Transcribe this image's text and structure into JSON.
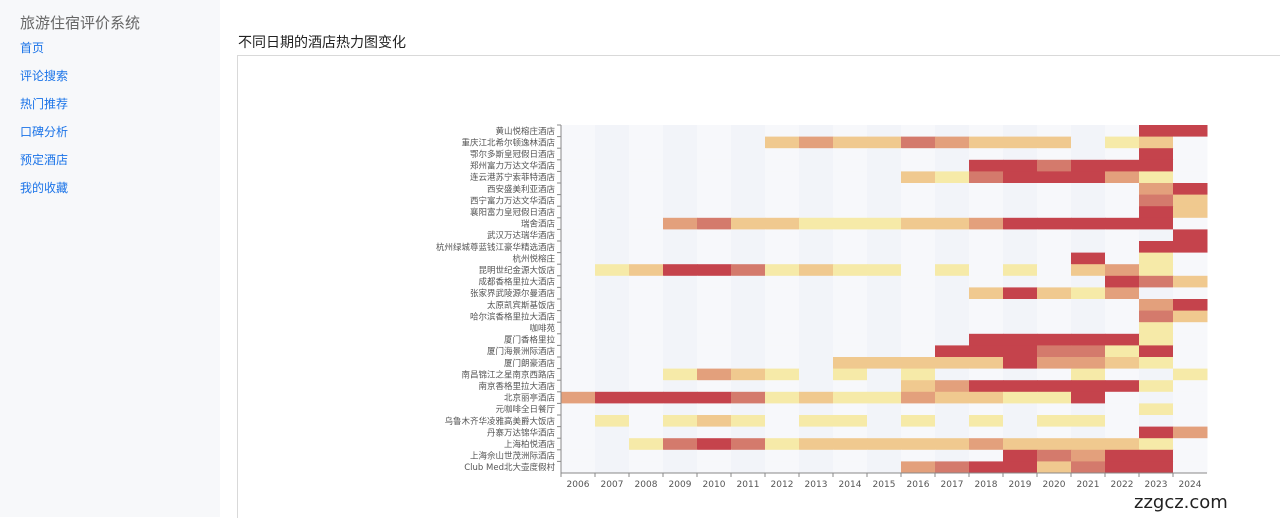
{
  "app": {
    "title": "旅游住宿评价系统"
  },
  "nav": [
    {
      "label": "首页"
    },
    {
      "label": "评论搜索"
    },
    {
      "label": "热门推荐"
    },
    {
      "label": "口碑分析"
    },
    {
      "label": "预定酒店"
    },
    {
      "label": "我的收藏"
    }
  ],
  "main": {
    "title": "不同日期的酒店热力图变化"
  },
  "watermark": "zzgcz.com",
  "chart_data": {
    "type": "heatmap",
    "title": "",
    "x_categories": [
      "2006",
      "2007",
      "2008",
      "2009",
      "2010",
      "2011",
      "2012",
      "2013",
      "2014",
      "2015",
      "2016",
      "2017",
      "2018",
      "2019",
      "2020",
      "2021",
      "2022",
      "2023",
      "2024"
    ],
    "y_categories": [
      "黄山悦榕庄酒店",
      "重庆江北希尔顿逸林酒店",
      "鄂尔多斯皇冠假日酒店",
      "郑州富力万达文华酒店",
      "连云港苏宁索菲特酒店",
      "西安盛美利亚酒店",
      "西宁富力万达文华酒店",
      "襄阳富力皇冠假日酒店",
      "瑞舍酒店",
      "武汉万达瑞华酒店",
      "杭州绿城尊蓝钱江豪华精选酒店",
      "杭州悦榕庄",
      "昆明世纪金源大饭店",
      "成都香格里拉大酒店",
      "张家界武陵源尔曼酒店",
      "太原凯宾斯基饭店",
      "哈尔滨香格里拉大酒店",
      "咖啡苑",
      "厦门香格里拉",
      "厦门海景洲际酒店",
      "厦门朗豪酒店",
      "南昌锦江之星南京西路店",
      "南京香格里拉大酒店",
      "北京丽亭酒店",
      "元咖啡全日餐厅",
      "乌鲁木齐华凌雅高美爵大饭店",
      "丹寨万达锦华酒店",
      "上海柏悦酒店",
      "上海佘山世茂洲际酒店",
      "Club Med北大壶度假村"
    ],
    "value_range": [
      0,
      5
    ],
    "rows": [
      [
        0,
        0,
        0,
        0,
        0,
        0,
        0,
        0,
        0,
        0,
        0,
        0,
        0,
        0,
        0,
        0,
        0,
        5,
        5
      ],
      [
        0,
        0,
        0,
        0,
        0,
        0,
        2,
        3,
        2,
        2,
        4,
        3,
        2,
        2,
        2,
        0,
        1,
        2,
        0
      ],
      [
        0,
        0,
        0,
        0,
        0,
        0,
        0,
        0,
        0,
        0,
        0,
        0,
        0,
        0,
        0,
        0,
        0,
        5,
        0
      ],
      [
        0,
        0,
        0,
        0,
        0,
        0,
        0,
        0,
        0,
        0,
        0,
        0,
        5,
        5,
        4,
        5,
        5,
        5,
        0
      ],
      [
        0,
        0,
        0,
        0,
        0,
        0,
        0,
        0,
        0,
        0,
        2,
        1,
        4,
        5,
        5,
        5,
        3,
        1,
        0
      ],
      [
        0,
        0,
        0,
        0,
        0,
        0,
        0,
        0,
        0,
        0,
        0,
        0,
        0,
        0,
        0,
        0,
        0,
        3,
        5
      ],
      [
        0,
        0,
        0,
        0,
        0,
        0,
        0,
        0,
        0,
        0,
        0,
        0,
        0,
        0,
        0,
        0,
        0,
        4,
        2
      ],
      [
        0,
        0,
        0,
        0,
        0,
        0,
        0,
        0,
        0,
        0,
        0,
        0,
        0,
        0,
        0,
        0,
        0,
        5,
        2
      ],
      [
        0,
        0,
        0,
        3,
        4,
        2,
        2,
        1,
        1,
        1,
        2,
        2,
        3,
        5,
        5,
        5,
        5,
        5,
        0
      ],
      [
        0,
        0,
        0,
        0,
        0,
        0,
        0,
        0,
        0,
        0,
        0,
        0,
        0,
        0,
        0,
        0,
        0,
        0,
        5
      ],
      [
        0,
        0,
        0,
        0,
        0,
        0,
        0,
        0,
        0,
        0,
        0,
        0,
        0,
        0,
        0,
        0,
        0,
        5,
        5
      ],
      [
        0,
        0,
        0,
        0,
        0,
        0,
        0,
        0,
        0,
        0,
        0,
        0,
        0,
        0,
        0,
        5,
        0,
        1,
        0
      ],
      [
        0,
        1,
        2,
        5,
        5,
        4,
        1,
        2,
        1,
        1,
        0,
        1,
        0,
        1,
        0,
        2,
        3,
        1,
        0
      ],
      [
        0,
        0,
        0,
        0,
        0,
        0,
        0,
        0,
        0,
        0,
        0,
        0,
        0,
        0,
        0,
        0,
        5,
        4,
        2
      ],
      [
        0,
        0,
        0,
        0,
        0,
        0,
        0,
        0,
        0,
        0,
        0,
        0,
        2,
        5,
        2,
        1,
        3,
        0,
        0
      ],
      [
        0,
        0,
        0,
        0,
        0,
        0,
        0,
        0,
        0,
        0,
        0,
        0,
        0,
        0,
        0,
        0,
        0,
        3,
        5
      ],
      [
        0,
        0,
        0,
        0,
        0,
        0,
        0,
        0,
        0,
        0,
        0,
        0,
        0,
        0,
        0,
        0,
        0,
        4,
        2
      ],
      [
        0,
        0,
        0,
        0,
        0,
        0,
        0,
        0,
        0,
        0,
        0,
        0,
        0,
        0,
        0,
        0,
        0,
        1,
        0
      ],
      [
        0,
        0,
        0,
        0,
        0,
        0,
        0,
        0,
        0,
        0,
        0,
        0,
        5,
        5,
        5,
        5,
        5,
        1,
        0
      ],
      [
        0,
        0,
        0,
        0,
        0,
        0,
        0,
        0,
        0,
        0,
        0,
        5,
        5,
        5,
        4,
        4,
        1,
        5,
        0
      ],
      [
        0,
        0,
        0,
        0,
        0,
        0,
        0,
        0,
        2,
        2,
        2,
        2,
        2,
        5,
        3,
        3,
        2,
        1,
        0
      ],
      [
        0,
        0,
        0,
        1,
        3,
        2,
        1,
        0,
        1,
        0,
        1,
        0,
        0,
        0,
        0,
        1,
        0,
        0,
        1
      ],
      [
        0,
        0,
        0,
        0,
        0,
        0,
        0,
        0,
        0,
        0,
        2,
        3,
        5,
        5,
        5,
        5,
        5,
        1,
        0
      ],
      [
        3,
        5,
        5,
        5,
        5,
        4,
        1,
        2,
        1,
        1,
        3,
        2,
        2,
        1,
        1,
        5,
        0,
        0,
        0
      ],
      [
        0,
        0,
        0,
        0,
        0,
        0,
        0,
        0,
        0,
        0,
        0,
        0,
        0,
        0,
        0,
        0,
        0,
        1,
        0
      ],
      [
        0,
        1,
        0,
        1,
        2,
        1,
        0,
        1,
        1,
        0,
        1,
        0,
        1,
        0,
        1,
        1,
        0,
        0,
        0
      ],
      [
        0,
        0,
        0,
        0,
        0,
        0,
        0,
        0,
        0,
        0,
        0,
        0,
        0,
        0,
        0,
        0,
        0,
        5,
        3
      ],
      [
        0,
        0,
        1,
        4,
        5,
        4,
        1,
        2,
        2,
        2,
        2,
        2,
        3,
        2,
        2,
        2,
        2,
        1,
        0
      ],
      [
        0,
        0,
        0,
        0,
        0,
        0,
        0,
        0,
        0,
        0,
        0,
        0,
        0,
        5,
        4,
        3,
        5,
        5,
        0
      ],
      [
        0,
        0,
        0,
        0,
        0,
        0,
        0,
        0,
        0,
        0,
        3,
        4,
        5,
        5,
        2,
        4,
        5,
        5,
        0
      ]
    ],
    "colors": [
      "#f7f8fb",
      "#f6eaa8",
      "#f0c98f",
      "#e3a07c",
      "#d47a6c",
      "#c5434c"
    ]
  }
}
